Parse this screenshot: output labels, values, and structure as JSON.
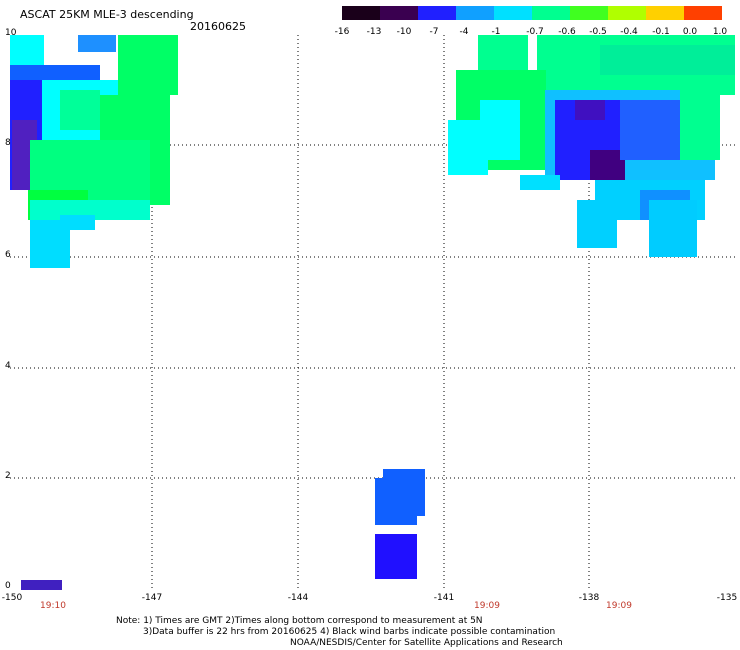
{
  "header": {
    "title": "ASCAT 25KM MLE-3 descending",
    "date": "20160625"
  },
  "colorbar": {
    "labels": [
      "-16",
      "-13",
      "-10",
      "-7",
      "-4",
      "-1",
      "-0.7",
      "-0.6",
      "-0.5",
      "-0.4",
      "-0.1",
      "0.0",
      "1.0"
    ],
    "colors": [
      "#1a001a",
      "#3a0040",
      "#5a0080",
      "#3a00c0",
      "#1010ff",
      "#1060ff",
      "#10b0ff",
      "#00ffff",
      "#00ff80",
      "#20ff20",
      "#a0ff00",
      "#ffff00",
      "#ffa000",
      "#ff3000"
    ]
  },
  "axes": {
    "x_ticks": [
      "-150",
      "-147",
      "-144",
      "-141",
      "-138",
      "-135"
    ],
    "y_ticks": [
      "0",
      "2",
      "4",
      "6",
      "8",
      "10"
    ]
  },
  "pass_times": [
    "19:10",
    "19:09",
    "19:09"
  ],
  "notes": {
    "line1": "Note: 1) Times are GMT 2)Times along bottom correspond to measurement at 5N",
    "line2": "3)Data buffer is 22 hrs from 20160625 4) Black wind barbs indicate possible contamination",
    "line3": "NOAA/NESDIS/Center for Satellite Applications and Research"
  },
  "map_data": {
    "lon_range": [
      -150,
      -135
    ],
    "lat_range": [
      0,
      10
    ],
    "grid": true,
    "swaths": [
      {
        "region": "west",
        "lon_range": [
          -150,
          -146.9
        ],
        "lat_range": [
          5.8,
          10
        ],
        "dominant_values": "-10 to -0.5"
      },
      {
        "region": "east",
        "lon_range": [
          -141.1,
          -135.4
        ],
        "lat_range": [
          6,
          10
        ],
        "dominant_values": "-13 to -0.5"
      },
      {
        "region": "central",
        "lon_range": [
          -142.6,
          -141.6
        ],
        "lat_range": [
          0.1,
          2.1
        ],
        "dominant_values": "-7 to -4"
      }
    ]
  }
}
